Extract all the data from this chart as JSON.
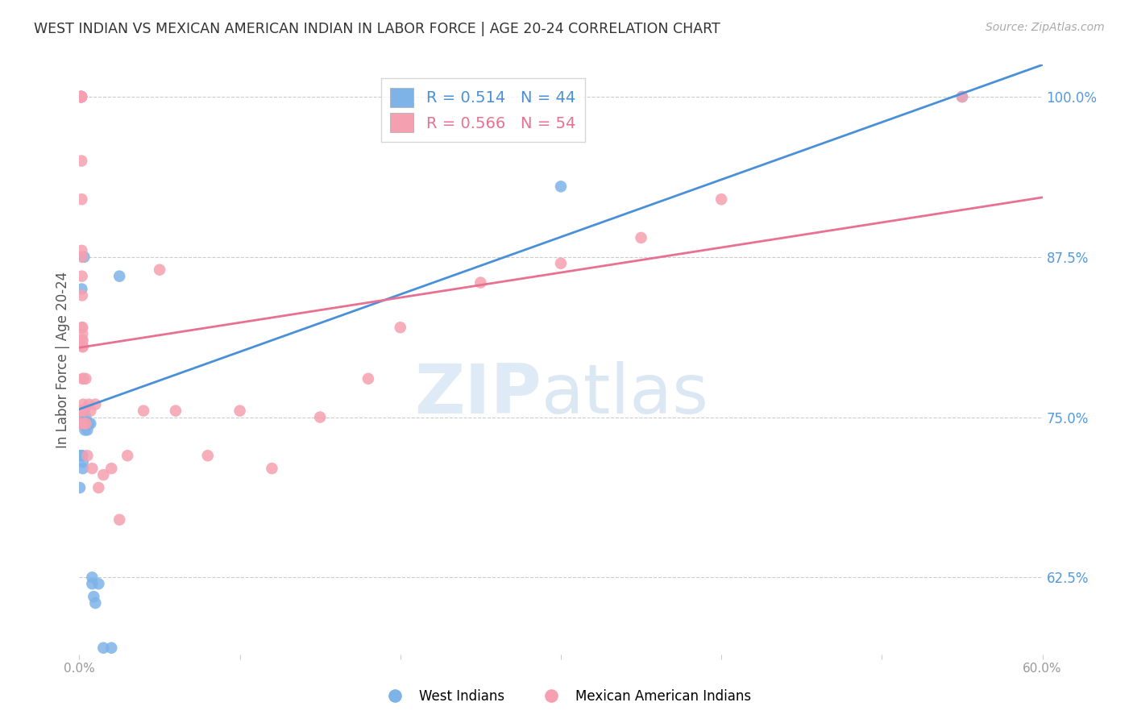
{
  "title": "WEST INDIAN VS MEXICAN AMERICAN INDIAN IN LABOR FORCE | AGE 20-24 CORRELATION CHART",
  "source": "Source: ZipAtlas.com",
  "ylabel": "In Labor Force | Age 20-24",
  "ytick_labels": [
    "100.0%",
    "87.5%",
    "75.0%",
    "62.5%"
  ],
  "ytick_values": [
    1.0,
    0.875,
    0.75,
    0.625
  ],
  "xlim": [
    0.0,
    0.6
  ],
  "ylim": [
    0.565,
    1.025
  ],
  "background_color": "#ffffff",
  "grid_color": "#cccccc",
  "blue_color": "#7eb3e8",
  "pink_color": "#f5a0b0",
  "blue_line_color": "#4a90d9",
  "pink_line_color": "#e87090",
  "legend_blue_label": "R = 0.514   N = 44",
  "legend_pink_label": "R = 0.566   N = 54",
  "west_indian_x": [
    0.0002,
    0.0003,
    0.001,
    0.001,
    0.0012,
    0.0012,
    0.0013,
    0.0015,
    0.0015,
    0.0016,
    0.0016,
    0.0017,
    0.0017,
    0.0018,
    0.0018,
    0.0018,
    0.0019,
    0.0019,
    0.002,
    0.002,
    0.002,
    0.0022,
    0.0022,
    0.0025,
    0.0025,
    0.003,
    0.003,
    0.0035,
    0.004,
    0.004,
    0.005,
    0.005,
    0.006,
    0.007,
    0.008,
    0.008,
    0.009,
    0.01,
    0.012,
    0.015,
    0.02,
    0.025,
    0.3,
    0.55
  ],
  "west_indian_y": [
    0.72,
    0.695,
    1.0,
    1.0,
    1.0,
    1.0,
    1.0,
    0.85,
    0.72,
    0.755,
    0.755,
    0.75,
    0.745,
    0.745,
    0.755,
    0.755,
    0.755,
    0.75,
    0.745,
    0.75,
    0.72,
    0.715,
    0.71,
    0.755,
    0.75,
    0.875,
    0.75,
    0.74,
    0.75,
    0.745,
    0.745,
    0.74,
    0.745,
    0.745,
    0.625,
    0.62,
    0.61,
    0.605,
    0.62,
    0.57,
    0.57,
    0.86,
    0.93,
    1.0
  ],
  "mexican_x": [
    0.0002,
    0.0003,
    0.0005,
    0.0008,
    0.001,
    0.001,
    0.0012,
    0.0013,
    0.0013,
    0.0014,
    0.0014,
    0.0015,
    0.0015,
    0.0016,
    0.0016,
    0.0017,
    0.0018,
    0.0018,
    0.0019,
    0.0019,
    0.002,
    0.002,
    0.0022,
    0.0022,
    0.0025,
    0.0025,
    0.003,
    0.003,
    0.004,
    0.004,
    0.005,
    0.006,
    0.007,
    0.008,
    0.01,
    0.012,
    0.015,
    0.02,
    0.025,
    0.03,
    0.04,
    0.05,
    0.06,
    0.08,
    0.1,
    0.12,
    0.15,
    0.18,
    0.2,
    0.25,
    0.3,
    0.35,
    0.4,
    0.55
  ],
  "mexican_y": [
    0.755,
    0.755,
    0.745,
    0.755,
    1.0,
    1.0,
    1.0,
    1.0,
    1.0,
    1.0,
    0.95,
    0.92,
    0.88,
    0.875,
    0.86,
    0.845,
    0.82,
    0.82,
    0.815,
    0.81,
    0.81,
    0.805,
    0.805,
    0.78,
    0.78,
    0.76,
    0.755,
    0.745,
    0.78,
    0.745,
    0.72,
    0.76,
    0.755,
    0.71,
    0.76,
    0.695,
    0.705,
    0.71,
    0.67,
    0.72,
    0.755,
    0.865,
    0.755,
    0.72,
    0.755,
    0.71,
    0.75,
    0.78,
    0.82,
    0.855,
    0.87,
    0.89,
    0.92,
    1.0
  ]
}
